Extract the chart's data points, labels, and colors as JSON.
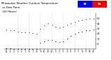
{
  "title1": "Milwaukee Weather Outdoor Temperature",
  "title2": " vs Dew Point",
  "title3": " (24 Hours)",
  "title_fontsize": 2.8,
  "background_color": "#ffffff",
  "grid_color": "#bbbbbb",
  "temp_color": "#cc0000",
  "dew_color": "#0000cc",
  "ylim": [
    -10,
    60
  ],
  "yticks": [
    0,
    10,
    20,
    30,
    40,
    50
  ],
  "ytick_fontsize": 2.5,
  "xtick_fontsize": 2.0,
  "hours": [
    0,
    1,
    2,
    3,
    4,
    5,
    6,
    7,
    8,
    9,
    10,
    11,
    12,
    13,
    14,
    15,
    16,
    17,
    18,
    19,
    20,
    21,
    22,
    23
  ],
  "hour_labels": [
    "12",
    "1",
    "2",
    "3",
    "4",
    "5",
    "6",
    "7",
    "8",
    "9",
    "10",
    "11",
    "12",
    "1",
    "2",
    "3",
    "4",
    "5",
    "6",
    "7",
    "8",
    "9",
    "10",
    "11"
  ],
  "temp": [
    28,
    27,
    26,
    24,
    23,
    22,
    22,
    21,
    20,
    30,
    36,
    40,
    38,
    34,
    32,
    33,
    37,
    40,
    43,
    46,
    47,
    48,
    49,
    50
  ],
  "dew": [
    -8,
    -8,
    -9,
    -9,
    -9,
    -10,
    -10,
    -10,
    -10,
    2,
    5,
    8,
    8,
    5,
    4,
    5,
    10,
    16,
    20,
    23,
    24,
    26,
    27,
    28
  ],
  "current_temp": 50,
  "current_dew": 28,
  "bar_blue": "#0000ee",
  "bar_red": "#ee0000",
  "bar_label_fontsize": 2.8,
  "marker_size": 0.9,
  "dashed_hours": [
    3,
    6,
    9,
    12,
    15,
    18,
    21
  ]
}
